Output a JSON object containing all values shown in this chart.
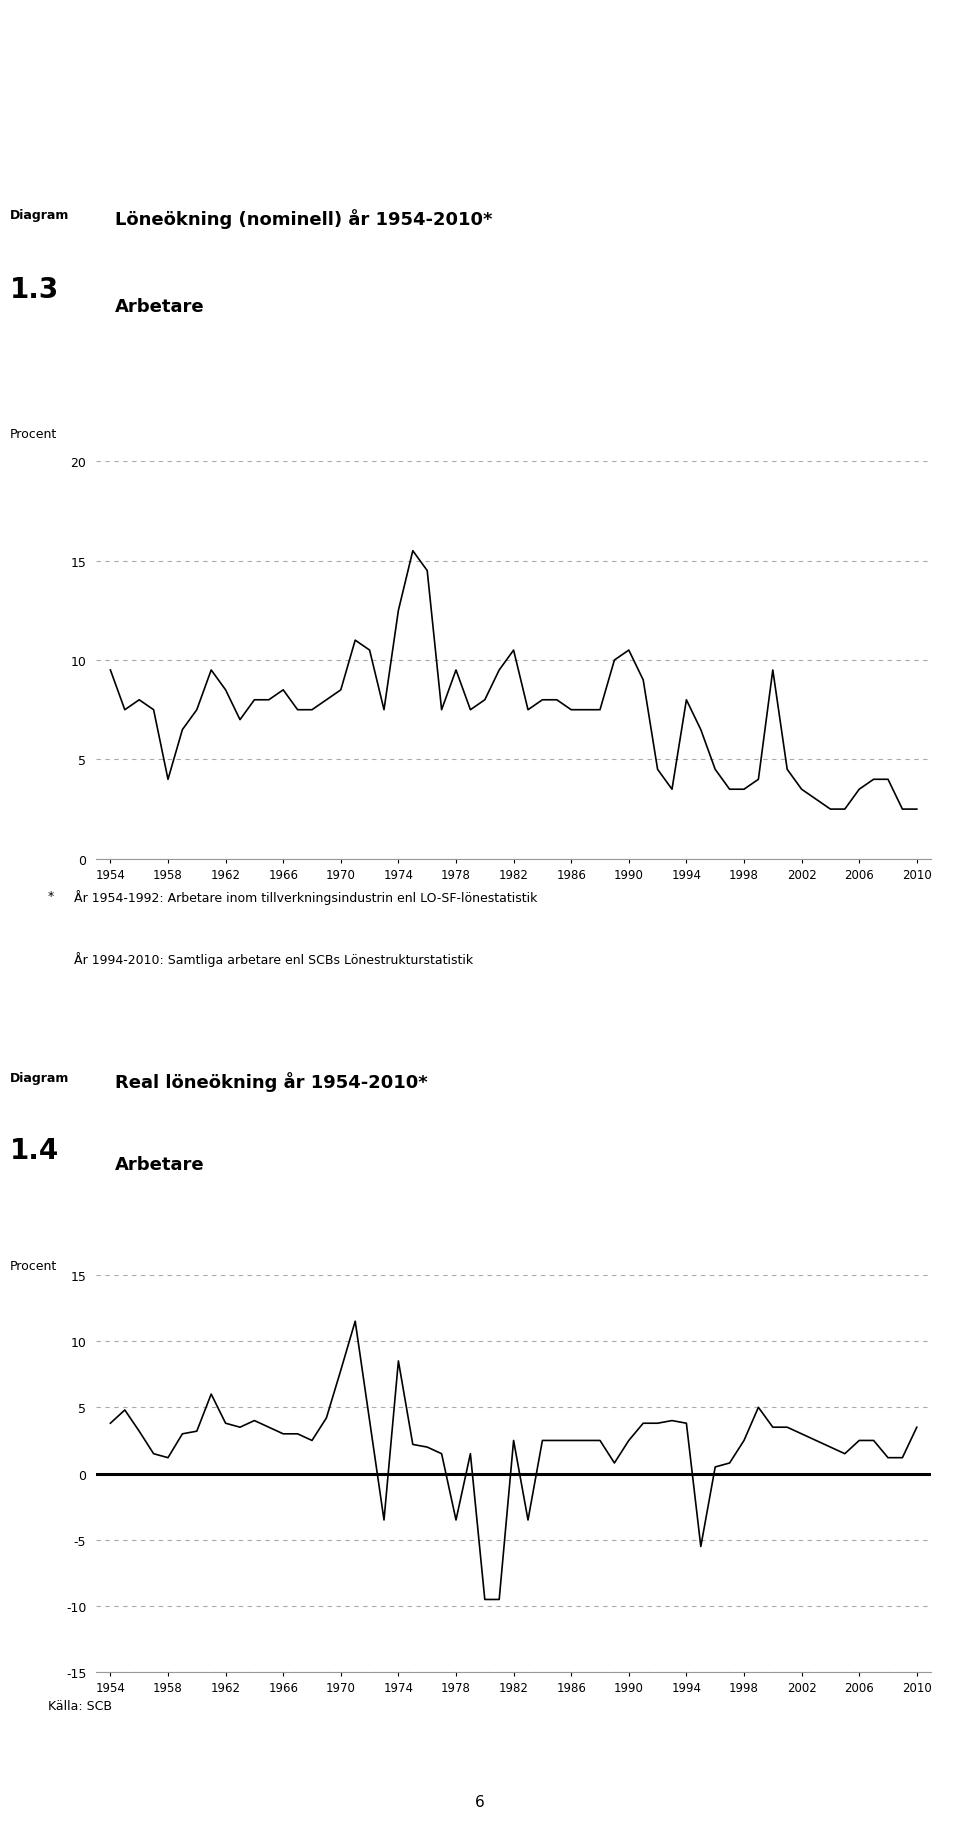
{
  "chart1": {
    "title_line1": "Löneökning (nominell) år 1954-2010*",
    "title_line2": "Arbetare",
    "diagram_label": "Diagram",
    "diagram_number": "1.3",
    "ylabel": "Procent",
    "ylim": [
      0,
      20
    ],
    "yticks": [
      0,
      5,
      10,
      15,
      20
    ],
    "years": [
      1954,
      1955,
      1956,
      1957,
      1958,
      1959,
      1960,
      1961,
      1962,
      1963,
      1964,
      1965,
      1966,
      1967,
      1968,
      1969,
      1970,
      1971,
      1972,
      1973,
      1974,
      1975,
      1976,
      1977,
      1978,
      1979,
      1980,
      1981,
      1982,
      1983,
      1984,
      1985,
      1986,
      1987,
      1988,
      1989,
      1990,
      1991,
      1992,
      1993,
      1994,
      1995,
      1996,
      1997,
      1998,
      1999,
      2000,
      2001,
      2002,
      2003,
      2004,
      2005,
      2006,
      2007,
      2008,
      2009,
      2010
    ],
    "values": [
      9.5,
      7.5,
      8.0,
      7.5,
      4.0,
      6.5,
      7.5,
      9.5,
      8.5,
      7.0,
      8.0,
      8.0,
      8.5,
      7.5,
      7.5,
      8.0,
      8.5,
      11.0,
      10.5,
      7.5,
      12.5,
      15.5,
      14.5,
      7.5,
      9.5,
      7.5,
      8.0,
      9.5,
      10.5,
      7.5,
      8.0,
      8.0,
      7.5,
      7.5,
      7.5,
      10.0,
      10.5,
      9.0,
      4.5,
      3.5,
      8.0,
      6.5,
      4.5,
      3.5,
      3.5,
      4.0,
      9.5,
      4.5,
      3.5,
      3.0,
      2.5,
      2.5,
      3.5,
      4.0,
      4.0,
      2.5,
      2.5
    ]
  },
  "chart2": {
    "title_line1": "Real löneökning år 1954-2010*",
    "title_line2": "Arbetare",
    "diagram_label": "Diagram",
    "diagram_number": "1.4",
    "ylabel": "Procent",
    "ylim": [
      -15,
      15
    ],
    "yticks": [
      -15,
      -10,
      -5,
      0,
      5,
      10,
      15
    ],
    "years": [
      1954,
      1955,
      1956,
      1957,
      1958,
      1959,
      1960,
      1961,
      1962,
      1963,
      1964,
      1965,
      1966,
      1967,
      1968,
      1969,
      1970,
      1971,
      1972,
      1973,
      1974,
      1975,
      1976,
      1977,
      1978,
      1979,
      1980,
      1981,
      1982,
      1983,
      1984,
      1985,
      1986,
      1987,
      1988,
      1989,
      1990,
      1991,
      1992,
      1993,
      1994,
      1995,
      1996,
      1997,
      1998,
      1999,
      2000,
      2001,
      2002,
      2003,
      2004,
      2005,
      2006,
      2007,
      2008,
      2009,
      2010
    ],
    "values": [
      3.8,
      4.8,
      3.2,
      1.5,
      1.2,
      3.0,
      3.2,
      6.0,
      3.8,
      3.5,
      4.0,
      3.5,
      3.0,
      3.0,
      2.5,
      4.2,
      7.8,
      11.5,
      4.0,
      -3.5,
      8.5,
      2.2,
      2.0,
      1.5,
      -3.5,
      1.5,
      -9.5,
      -9.5,
      2.5,
      -3.5,
      2.5,
      2.5,
      2.5,
      2.5,
      2.5,
      0.8,
      2.5,
      3.8,
      3.8,
      4.0,
      3.8,
      -5.5,
      0.5,
      0.8,
      2.5,
      5.0,
      3.5,
      3.5,
      3.0,
      2.5,
      2.0,
      1.5,
      2.5,
      2.5,
      1.2,
      1.2,
      3.5
    ]
  },
  "footnote_star": "*",
  "footnote_line1": "  År 1954-1992: Arbetare inom tillverkningsindustrin enl LO-SF-lönestatistik",
  "footnote_line2": "  År 1994-2010: Samtliga arbetare enl SCBs Lönestrukturstatistik",
  "source": "Källa: SCB",
  "page_number": "6",
  "xtick_years": [
    1954,
    1958,
    1962,
    1966,
    1970,
    1974,
    1978,
    1982,
    1986,
    1990,
    1994,
    1998,
    2002,
    2006,
    2010
  ],
  "line_color": "#000000",
  "grid_color": "#aaaaaa",
  "background_color": "#ffffff"
}
